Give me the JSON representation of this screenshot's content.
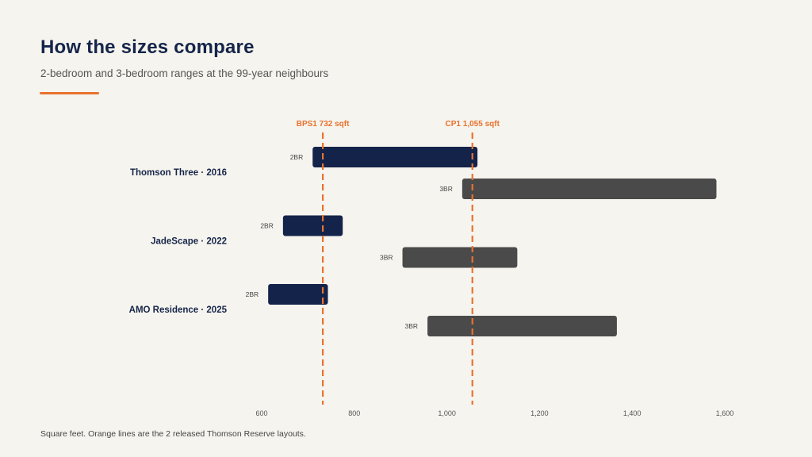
{
  "header": {
    "title": "How the sizes compare",
    "subtitle": "2-bedroom and 3-bedroom ranges at the 99-year neighbours"
  },
  "footnote": "Square feet.  Orange lines are the 2 released Thomson Reserve layouts.",
  "colors": {
    "accent": "#e8722f",
    "two_br": "#13234a",
    "three_br": "#4a4a4a",
    "title": "#15254a"
  },
  "chart_data": {
    "type": "bar",
    "orientation": "horizontal-range",
    "title": "How the sizes compare",
    "subtitle": "2-bedroom and 3-bedroom ranges at the 99-year neighbours",
    "xlabel": "",
    "ylabel": "",
    "xlim": [
      600,
      1600
    ],
    "x_ticks": [
      600,
      800,
      1000,
      1200,
      1400,
      1600
    ],
    "x_tick_labels": [
      "600",
      "800",
      "1,000",
      "1,200",
      "1,400",
      "1,600"
    ],
    "grid": false,
    "categories": [
      "Thomson Three  ·  2016",
      "JadeScape  ·  2022",
      "AMO Residence  ·  2025"
    ],
    "series": [
      {
        "name": "2BR",
        "ranges": [
          [
            710,
            1066
          ],
          [
            646,
            775
          ],
          [
            614,
            743
          ]
        ]
      },
      {
        "name": "3BR",
        "ranges": [
          [
            1033,
            1582
          ],
          [
            904,
            1152
          ],
          [
            958,
            1367
          ]
        ]
      }
    ],
    "reference_lines": [
      {
        "label": "BPS1  732 sqft",
        "value": 732
      },
      {
        "label": "CP1  1,055 sqft",
        "value": 1055
      }
    ]
  }
}
